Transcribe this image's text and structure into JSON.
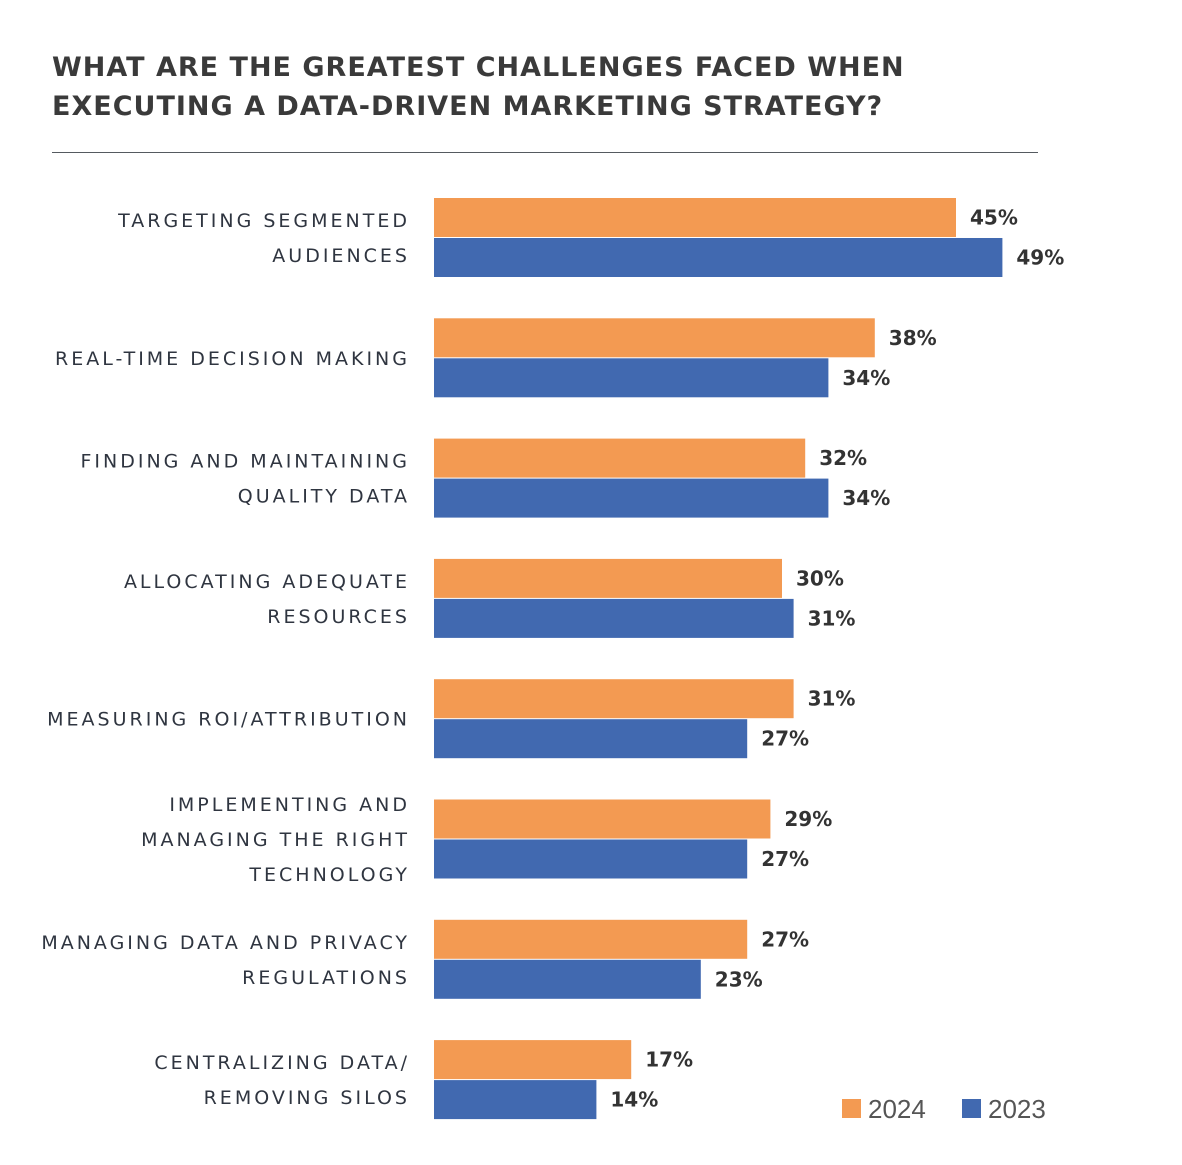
{
  "chart_data": {
    "type": "bar",
    "orientation": "horizontal",
    "title": "WHAT ARE THE GREATEST CHALLENGES FACED WHEN\nEXECUTING A DATA-DRIVEN MARKETING STRATEGY?",
    "categories": [
      [
        "TARGETING SEGMENTED",
        "AUDIENCES"
      ],
      [
        "REAL-TIME DECISION MAKING"
      ],
      [
        "FINDING AND MAINTAINING",
        "QUALITY DATA"
      ],
      [
        "ALLOCATING ADEQUATE",
        "RESOURCES"
      ],
      [
        "MEASURING ROI/ATTRIBUTION"
      ],
      [
        "IMPLEMENTING AND",
        "MANAGING THE RIGHT",
        "TECHNOLOGY"
      ],
      [
        "MANAGING DATA AND PRIVACY",
        "REGULATIONS"
      ],
      [
        "CENTRALIZING DATA/",
        "REMOVING SILOS"
      ]
    ],
    "series": [
      {
        "name": "2024",
        "color": "#f39a52",
        "values": [
          45,
          38,
          32,
          30,
          31,
          29,
          27,
          17
        ]
      },
      {
        "name": "2023",
        "color": "#4169b0",
        "values": [
          49,
          34,
          34,
          31,
          27,
          27,
          23,
          14
        ]
      }
    ],
    "value_suffix": "%",
    "xlim": [
      0,
      100
    ],
    "grid": false,
    "legend_position": "bottom-right"
  }
}
